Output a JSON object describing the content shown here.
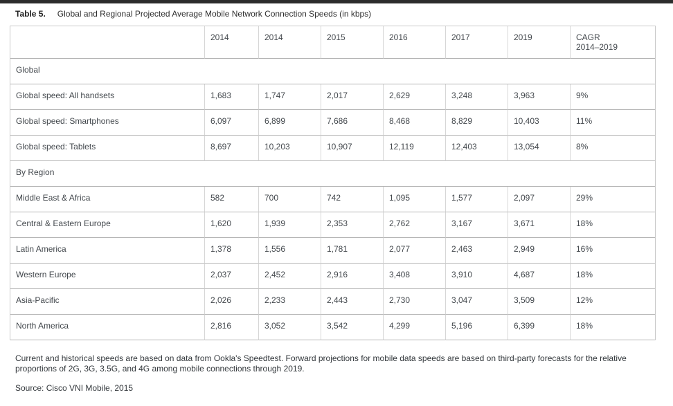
{
  "page": {
    "top_bar_color": "#2d2d2d",
    "background_color": "#ffffff"
  },
  "title": {
    "label": "Table 5.",
    "text": "Global and Regional Projected Average Mobile Network Connection Speeds (in kbps)"
  },
  "table": {
    "columns": [
      "",
      "2014",
      "2014",
      "2015",
      "2016",
      "2017",
      "2019",
      "CAGR\n2014–2019"
    ],
    "sections": [
      {
        "header": "Global",
        "rows": [
          {
            "label": "Global speed: All handsets",
            "values": [
              "1,683",
              "1,747",
              "2,017",
              "2,629",
              "3,248",
              "3,963",
              "9%"
            ]
          },
          {
            "label": "Global speed: Smartphones",
            "values": [
              "6,097",
              "6,899",
              "7,686",
              "8,468",
              "8,829",
              "10,403",
              "11%"
            ]
          },
          {
            "label": "Global speed: Tablets",
            "values": [
              "8,697",
              "10,203",
              "10,907",
              "12,119",
              "12,403",
              "13,054",
              "8%"
            ]
          }
        ]
      },
      {
        "header": "By Region",
        "rows": [
          {
            "label": "Middle East & Africa",
            "values": [
              "582",
              "700",
              "742",
              "1,095",
              "1,577",
              "2,097",
              "29%"
            ]
          },
          {
            "label": "Central & Eastern Europe",
            "values": [
              "1,620",
              "1,939",
              "2,353",
              "2,762",
              "3,167",
              "3,671",
              "18%"
            ]
          },
          {
            "label": "Latin America",
            "values": [
              "1,378",
              "1,556",
              "1,781",
              "2,077",
              "2,463",
              "2,949",
              "16%"
            ]
          },
          {
            "label": "Western Europe",
            "values": [
              "2,037",
              "2,452",
              "2,916",
              "3,408",
              "3,910",
              "4,687",
              "18%"
            ]
          },
          {
            "label": "Asia-Pacific",
            "values": [
              "2,026",
              "2,233",
              "2,443",
              "2,730",
              "3,047",
              "3,509",
              "12%"
            ]
          },
          {
            "label": "North America",
            "values": [
              "2,816",
              "3,052",
              "3,542",
              "4,299",
              "5,196",
              "6,399",
              "18%"
            ]
          }
        ]
      }
    ]
  },
  "notes": {
    "body": "Current and historical speeds are based on data from Ookla's Speedtest. Forward projections for mobile data speeds are based on third-party forecasts for the relative proportions of 2G, 3G, 3.5G, and 4G among mobile connections through 2019.",
    "source": "Source: Cisco VNI Mobile, 2015"
  }
}
